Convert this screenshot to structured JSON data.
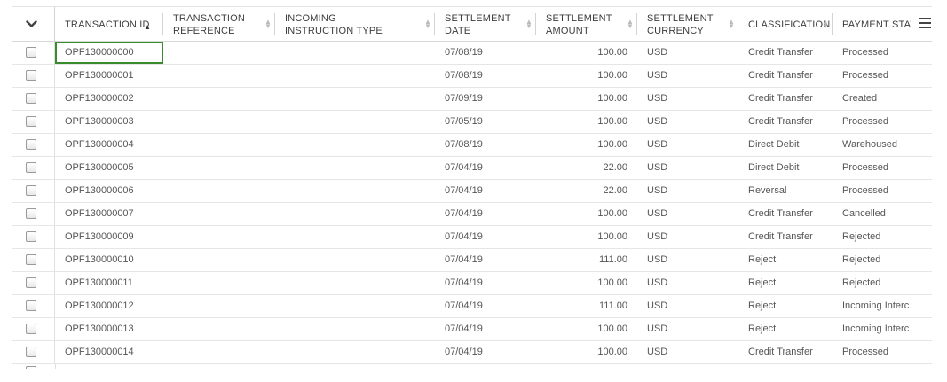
{
  "columns": [
    {
      "key": "transaction_id",
      "label": "TRANSACTION ID",
      "sort": "asc"
    },
    {
      "key": "transaction_reference",
      "label": "TRANSACTION\nREFERENCE",
      "sort": "none"
    },
    {
      "key": "incoming_instruction_type",
      "label": "INCOMING\nINSTRUCTION TYPE",
      "sort": "none"
    },
    {
      "key": "settlement_date",
      "label": "SETTLEMENT\nDATE",
      "sort": "none"
    },
    {
      "key": "settlement_amount",
      "label": "SETTLEMENT\nAMOUNT",
      "sort": "none"
    },
    {
      "key": "settlement_currency",
      "label": "SETTLEMENT\nCURRENCY",
      "sort": "none"
    },
    {
      "key": "classification",
      "label": "CLASSIFICATION",
      "sort": "none"
    },
    {
      "key": "payment_status",
      "label": "PAYMENT STAT",
      "sort": "none"
    }
  ],
  "icons": {
    "select_all": "chevron-down-icon",
    "column_menu": "hamburger-menu-icon",
    "sort_asc": "sort-asc-icon",
    "sort_none": "sort-icon"
  },
  "colors": {
    "focus_outline": "#3a8a2e",
    "header_text": "#3d3d3d",
    "cell_text": "#555555"
  },
  "rows": [
    {
      "transaction_id": "OPF130000000",
      "transaction_reference": "",
      "incoming_instruction_type": "",
      "settlement_date": "07/08/19",
      "settlement_amount": "100.00",
      "settlement_currency": "USD",
      "classification": "Credit Transfer",
      "payment_status": "Processed"
    },
    {
      "transaction_id": "OPF130000001",
      "transaction_reference": "",
      "incoming_instruction_type": "",
      "settlement_date": "07/08/19",
      "settlement_amount": "100.00",
      "settlement_currency": "USD",
      "classification": "Credit Transfer",
      "payment_status": "Processed"
    },
    {
      "transaction_id": "OPF130000002",
      "transaction_reference": "",
      "incoming_instruction_type": "",
      "settlement_date": "07/09/19",
      "settlement_amount": "100.00",
      "settlement_currency": "USD",
      "classification": "Credit Transfer",
      "payment_status": "Created"
    },
    {
      "transaction_id": "OPF130000003",
      "transaction_reference": "",
      "incoming_instruction_type": "",
      "settlement_date": "07/05/19",
      "settlement_amount": "100.00",
      "settlement_currency": "USD",
      "classification": "Credit Transfer",
      "payment_status": "Processed"
    },
    {
      "transaction_id": "OPF130000004",
      "transaction_reference": "",
      "incoming_instruction_type": "",
      "settlement_date": "07/08/19",
      "settlement_amount": "100.00",
      "settlement_currency": "USD",
      "classification": "Direct Debit",
      "payment_status": "Warehoused"
    },
    {
      "transaction_id": "OPF130000005",
      "transaction_reference": "",
      "incoming_instruction_type": "",
      "settlement_date": "07/04/19",
      "settlement_amount": "22.00",
      "settlement_currency": "USD",
      "classification": "Direct Debit",
      "payment_status": "Processed"
    },
    {
      "transaction_id": "OPF130000006",
      "transaction_reference": "",
      "incoming_instruction_type": "",
      "settlement_date": "07/04/19",
      "settlement_amount": "22.00",
      "settlement_currency": "USD",
      "classification": "Reversal",
      "payment_status": "Processed"
    },
    {
      "transaction_id": "OPF130000007",
      "transaction_reference": "",
      "incoming_instruction_type": "",
      "settlement_date": "07/04/19",
      "settlement_amount": "100.00",
      "settlement_currency": "USD",
      "classification": "Credit Transfer",
      "payment_status": "Cancelled"
    },
    {
      "transaction_id": "OPF130000009",
      "transaction_reference": "",
      "incoming_instruction_type": "",
      "settlement_date": "07/04/19",
      "settlement_amount": "100.00",
      "settlement_currency": "USD",
      "classification": "Credit Transfer",
      "payment_status": "Rejected"
    },
    {
      "transaction_id": "OPF130000010",
      "transaction_reference": "",
      "incoming_instruction_type": "",
      "settlement_date": "07/04/19",
      "settlement_amount": "111.00",
      "settlement_currency": "USD",
      "classification": "Reject",
      "payment_status": "Rejected"
    },
    {
      "transaction_id": "OPF130000011",
      "transaction_reference": "",
      "incoming_instruction_type": "",
      "settlement_date": "07/04/19",
      "settlement_amount": "100.00",
      "settlement_currency": "USD",
      "classification": "Reject",
      "payment_status": "Rejected"
    },
    {
      "transaction_id": "OPF130000012",
      "transaction_reference": "",
      "incoming_instruction_type": "",
      "settlement_date": "07/04/19",
      "settlement_amount": "111.00",
      "settlement_currency": "USD",
      "classification": "Reject",
      "payment_status": "Incoming Interc…"
    },
    {
      "transaction_id": "OPF130000013",
      "transaction_reference": "",
      "incoming_instruction_type": "",
      "settlement_date": "07/04/19",
      "settlement_amount": "100.00",
      "settlement_currency": "USD",
      "classification": "Reject",
      "payment_status": "Incoming Interc…"
    },
    {
      "transaction_id": "OPF130000014",
      "transaction_reference": "",
      "incoming_instruction_type": "",
      "settlement_date": "07/04/19",
      "settlement_amount": "100.00",
      "settlement_currency": "USD",
      "classification": "Credit Transfer",
      "payment_status": "Processed"
    }
  ]
}
